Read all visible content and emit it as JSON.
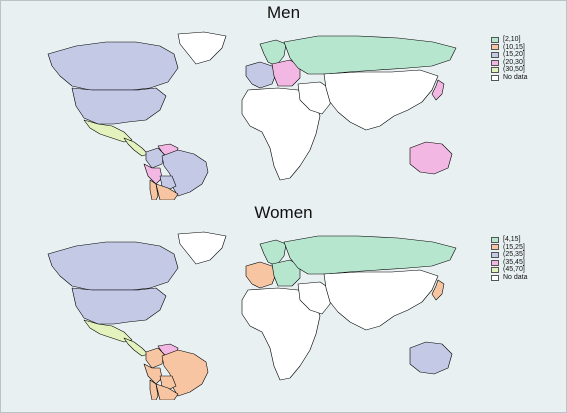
{
  "colors": {
    "background": "#e8f0f1",
    "land_no_data": "#ffffff",
    "border": "#000000",
    "green": "#b7e6cf",
    "orange": "#f7c5a1",
    "lavender": "#c4c9e6",
    "pink": "#f2b8e3",
    "lime": "#e4f2bd"
  },
  "panels": [
    {
      "title": "Men",
      "legend": [
        {
          "label": "[2,10]",
          "color": "#b7e6cf"
        },
        {
          "label": "(10,15]",
          "color": "#f7c5a1"
        },
        {
          "label": "(15,20]",
          "color": "#c4c9e6"
        },
        {
          "label": "(20,30]",
          "color": "#f2b8e3"
        },
        {
          "label": "(30,50]",
          "color": "#e4f2bd"
        },
        {
          "label": "No data",
          "color": "#ffffff"
        }
      ],
      "regions": {
        "canada": "lavender",
        "usa": "lavender",
        "greenland": "no_data",
        "mexico": "lime",
        "central_america": "lime",
        "colombia": "lavender",
        "venezuela": "pink",
        "brazil": "lavender",
        "peru": "pink",
        "bolivia": "lavender",
        "chile": "orange",
        "argentina": "orange",
        "russia": "green",
        "scandinavia": "green",
        "western_europe": "lavender",
        "eastern_europe": "pink",
        "africa": "no_data",
        "middle_east": "no_data",
        "asia": "no_data",
        "japan": "pink",
        "australia": "pink"
      }
    },
    {
      "title": "Women",
      "legend": [
        {
          "label": "[4,15]",
          "color": "#b7e6cf"
        },
        {
          "label": "(15,25]",
          "color": "#f7c5a1"
        },
        {
          "label": "(25,35]",
          "color": "#c4c9e6"
        },
        {
          "label": "(35,45]",
          "color": "#f2b8e3"
        },
        {
          "label": "(45,70]",
          "color": "#e4f2bd"
        },
        {
          "label": "No data",
          "color": "#ffffff"
        }
      ],
      "regions": {
        "canada": "lavender",
        "usa": "lavender",
        "greenland": "no_data",
        "mexico": "lime",
        "central_america": "lime",
        "colombia": "orange",
        "venezuela": "pink",
        "brazil": "orange",
        "peru": "orange",
        "bolivia": "orange",
        "chile": "orange",
        "argentina": "orange",
        "russia": "green",
        "scandinavia": "green",
        "western_europe": "orange",
        "eastern_europe": "green",
        "africa": "no_data",
        "middle_east": "no_data",
        "asia": "no_data",
        "japan": "orange",
        "australia": "lavender"
      }
    }
  ]
}
